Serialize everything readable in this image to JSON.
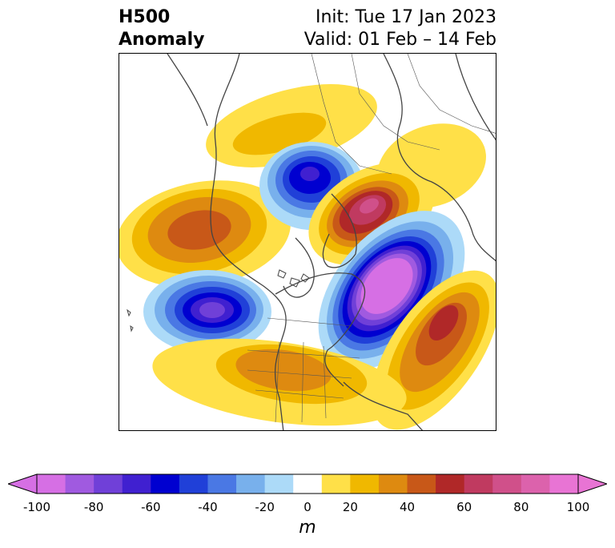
{
  "header": {
    "title_line1": "H500",
    "title_line2": "Anomaly",
    "init": "Init: Tue 17 Jan 2023",
    "valid": "Valid: 01 Feb – 14 Feb"
  },
  "legend": {
    "unit": "m",
    "ticks": [
      "-100",
      "-80",
      "-60",
      "-40",
      "-20",
      "0",
      "20",
      "40",
      "60",
      "80",
      "100"
    ],
    "bins": [
      -100,
      -90,
      -80,
      -70,
      -60,
      -50,
      -40,
      -30,
      -20,
      -10,
      10,
      20,
      30,
      40,
      50,
      60,
      70,
      80,
      90,
      100
    ],
    "colors": [
      "#d66fe4",
      "#a05ae0",
      "#7040d8",
      "#4020d0",
      "#0000d0",
      "#2040d8",
      "#4a78e4",
      "#78b0ec",
      "#acdaf8",
      "#ffffff",
      "#ffe048",
      "#f0b800",
      "#de8a10",
      "#c85818",
      "#b02828",
      "#c03a60",
      "#d0508a",
      "#dc62ac",
      "#e874d4"
    ],
    "extend_low_color": "#d66fe4",
    "extend_high_color": "#e874d4"
  },
  "map": {
    "projection": "polar stereographic (North Pole)",
    "anomaly_centers": [
      {
        "name": "Eastern Pacific trough",
        "sign": "negative",
        "min": -90
      },
      {
        "name": "Greenland/Iceland-Scandinavia trough",
        "sign": "negative",
        "min": -100
      },
      {
        "name": "Siberia trough",
        "sign": "negative",
        "min": -60
      },
      {
        "name": "Barents/Scandinavia ridge",
        "sign": "positive",
        "max": 80
      },
      {
        "name": "Western Europe ridge",
        "sign": "positive",
        "max": 60
      },
      {
        "name": "North Pacific ridge",
        "sign": "positive",
        "max": 50
      },
      {
        "name": "Central US ridge",
        "sign": "positive",
        "max": 40
      }
    ]
  }
}
